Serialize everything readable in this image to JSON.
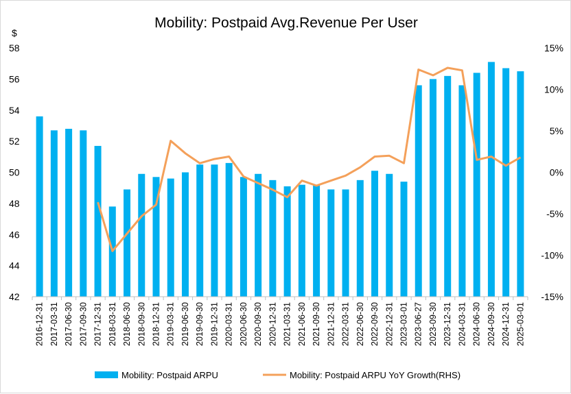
{
  "colors": {
    "bar": "#00b0f0",
    "line": "#f4a05a",
    "axis": "#bfbfbf"
  },
  "chart_data": {
    "type": "bar",
    "title": "Mobility: Postpaid Avg.Revenue Per User",
    "ylabel": "$",
    "ylim": [
      42,
      58
    ],
    "y_ticks": [
      "42",
      "44",
      "46",
      "48",
      "50",
      "52",
      "54",
      "56",
      "58"
    ],
    "y2lim": [
      -15,
      15
    ],
    "y2_ticks": [
      "-15%",
      "-10%",
      "-5%",
      "0%",
      "5%",
      "10%",
      "15%"
    ],
    "categories": [
      "2016-12-31",
      "2017-03-31",
      "2017-06-30",
      "2017-09-30",
      "2017-12-31",
      "2018-03-31",
      "2018-06-30",
      "2018-09-30",
      "2018-12-31",
      "2019-03-31",
      "2019-06-30",
      "2019-09-30",
      "2019-12-31",
      "2020-03-31",
      "2020-06-30",
      "2020-09-30",
      "2020-12-31",
      "2021-03-31",
      "2021-06-30",
      "2021-09-30",
      "2021-12-31",
      "2022-03-31",
      "2022-06-30",
      "2022-09-30",
      "2022-12-31",
      "2023-03-01",
      "2023-06-27",
      "2023-09-30",
      "2023-12-31",
      "2024-03-31",
      "2024-06-30",
      "2024-09-30",
      "2024-12-31",
      "2025-03-01"
    ],
    "series": [
      {
        "name": "Mobility: Postpaid ARPU",
        "axis": "left",
        "kind": "bar",
        "values": [
          53.6,
          52.7,
          52.8,
          52.7,
          51.7,
          47.8,
          48.9,
          49.9,
          49.7,
          49.6,
          50.0,
          50.5,
          50.5,
          50.6,
          49.7,
          49.9,
          49.5,
          49.1,
          49.2,
          49.2,
          48.9,
          48.9,
          49.5,
          50.1,
          49.9,
          49.4,
          55.6,
          56.0,
          56.2,
          55.6,
          56.4,
          57.1,
          56.7,
          56.5
        ]
      },
      {
        "name": "Mobility: Postpaid ARPU YoY Growth(RHS)",
        "axis": "right",
        "kind": "line",
        "values": [
          null,
          null,
          null,
          null,
          -3.6,
          -9.5,
          -7.4,
          -5.3,
          -3.9,
          3.8,
          2.3,
          1.1,
          1.6,
          1.9,
          -0.5,
          -1.3,
          -2.1,
          -3.0,
          -1.0,
          -1.6,
          -1.0,
          -0.4,
          0.6,
          1.9,
          2.0,
          1.1,
          12.4,
          11.7,
          12.6,
          12.3,
          1.5,
          1.9,
          0.8,
          1.8
        ]
      }
    ],
    "legend": "bottom"
  }
}
